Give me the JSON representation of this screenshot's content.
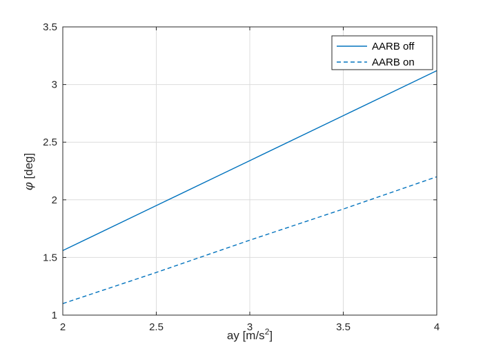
{
  "chart_data": {
    "type": "line",
    "xlabel": "ay [m/s",
    "xlabel_superscript": "2",
    "xlabel_suffix": "]",
    "ylabel": "[deg]",
    "ylabel_symbol": "φ",
    "xlim": [
      2,
      4
    ],
    "ylim": [
      1,
      3.5
    ],
    "xticks": [
      2,
      2.5,
      3,
      3.5,
      4
    ],
    "xtick_labels": [
      "2",
      "2.5",
      "3",
      "3.5",
      "4"
    ],
    "yticks": [
      1,
      1.5,
      2,
      2.5,
      3,
      3.5
    ],
    "ytick_labels": [
      "1",
      "1.5",
      "2",
      "2.5",
      "3",
      "3.5"
    ],
    "grid": true,
    "legend_position": "top-right",
    "series": [
      {
        "name": "AARB off",
        "style": "solid",
        "color": "#0072BD",
        "x": [
          2,
          2.5,
          3,
          3.5,
          4
        ],
        "y": [
          1.56,
          1.95,
          2.34,
          2.73,
          3.12
        ]
      },
      {
        "name": "AARB on",
        "style": "dashed",
        "color": "#0072BD",
        "x": [
          2,
          2.5,
          3,
          3.5,
          4
        ],
        "y": [
          1.1,
          1.37,
          1.65,
          1.92,
          2.2
        ]
      }
    ]
  }
}
